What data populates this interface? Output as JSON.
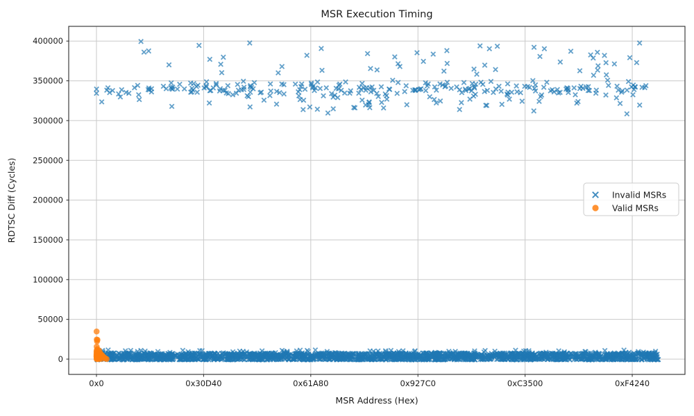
{
  "title": "MSR Execution Timing",
  "chart_data": {
    "type": "scatter",
    "title": "MSR Execution Timing",
    "xlabel": "MSR Address (Hex)",
    "ylabel": "RDTSC Diff (Cycles)",
    "xlim": [
      -51800,
      1098400
    ],
    "ylim": [
      -19200,
      418500
    ],
    "grid": true,
    "xticks": {
      "values": [
        0,
        200000,
        400000,
        600000,
        800000,
        1000000
      ],
      "labels": [
        "0x0",
        "0x30D40",
        "0x61A80",
        "0x927C0",
        "0xC3500",
        "0xF4240"
      ]
    },
    "yticks": {
      "values": [
        0,
        50000,
        100000,
        150000,
        200000,
        250000,
        300000,
        350000,
        400000
      ],
      "labels": [
        "0",
        "50000",
        "100000",
        "150000",
        "200000",
        "250000",
        "300000",
        "350000",
        "400000"
      ]
    },
    "legend": {
      "position": "center-right",
      "entries": [
        {
          "label": "Invalid MSRs",
          "marker": "x",
          "color": "#1f77b4"
        },
        {
          "label": "Valid MSRs",
          "marker": "circle",
          "color": "#ff7f0e"
        }
      ]
    },
    "series": [
      {
        "name": "Invalid MSRs",
        "marker": "x",
        "color": "#1f77b4",
        "alpha": 0.7,
        "points": [
          [
            83000,
            399500
          ],
          [
            990000,
            308500
          ],
          [
            563000,
            371500
          ],
          [
            432000,
            309500
          ]
        ],
        "clusters": [
          {
            "desc": "high-latency band ~310k-400k cycles across full address range",
            "seed": 42,
            "count": 330,
            "x": [
              0,
              1030000
            ],
            "bands": [
              {
                "frac": 0.7,
                "y": [
                  327000,
                  352000
                ],
                "shape": "center"
              },
              {
                "frac": 0.14,
                "y": [
                  310000,
                  327000
                ],
                "shape": "top"
              },
              {
                "frac": 0.16,
                "y": [
                  353000,
                  399000
                ],
                "shape": "uniform"
              }
            ]
          },
          {
            "desc": "dense low-latency band ~2k-8k cycles",
            "seed": 7,
            "count": 1500,
            "x": [
              0,
              1051000
            ],
            "bands": [
              {
                "frac": 1.0,
                "y": [
                  1800,
                  7800
                ],
                "shape": "uniform"
              }
            ]
          },
          {
            "desc": "near-zero dense line",
            "seed": 13,
            "count": 700,
            "x": [
              0,
              1051000
            ],
            "bands": [
              {
                "frac": 1.0,
                "y": [
                  -900,
                  600
                ],
                "shape": "uniform"
              }
            ]
          },
          {
            "desc": "small bumps above low band",
            "seed": 99,
            "count": 70,
            "x": [
              0,
              1051000
            ],
            "bands": [
              {
                "frac": 1.0,
                "y": [
                  7800,
                  11500
                ],
                "shape": "uniform"
              }
            ]
          }
        ]
      },
      {
        "name": "Valid MSRs",
        "marker": "circle",
        "color": "#ff7f0e",
        "alpha": 0.75,
        "points": [
          [
            256,
            34800
          ],
          [
            512,
            24700
          ],
          [
            1800,
            24200
          ],
          [
            1024,
            22400
          ],
          [
            384,
            15800
          ],
          [
            2048,
            12600
          ],
          [
            640,
            11600
          ],
          [
            5000,
            10700
          ],
          [
            128,
            9800
          ],
          [
            3000,
            9100
          ],
          [
            832,
            8400
          ],
          [
            7000,
            7900
          ],
          [
            96,
            7300
          ],
          [
            4200,
            6800
          ],
          [
            1400,
            6300
          ],
          [
            9000,
            5900
          ],
          [
            64,
            5400
          ],
          [
            2600,
            5000
          ],
          [
            11000,
            4600
          ],
          [
            520,
            4200
          ],
          [
            6200,
            3800
          ],
          [
            1,
            3400
          ],
          [
            13000,
            3100
          ],
          [
            3600,
            2800
          ],
          [
            240,
            2400
          ],
          [
            8200,
            2100
          ],
          [
            15000,
            1800
          ],
          [
            1100,
            1500
          ],
          [
            4800,
            1200
          ],
          [
            17000,
            950
          ],
          [
            700,
            700
          ],
          [
            10200,
            500
          ],
          [
            2200,
            300
          ],
          [
            19000,
            150
          ],
          [
            5600,
            50
          ],
          [
            300,
            0
          ]
        ]
      }
    ]
  }
}
